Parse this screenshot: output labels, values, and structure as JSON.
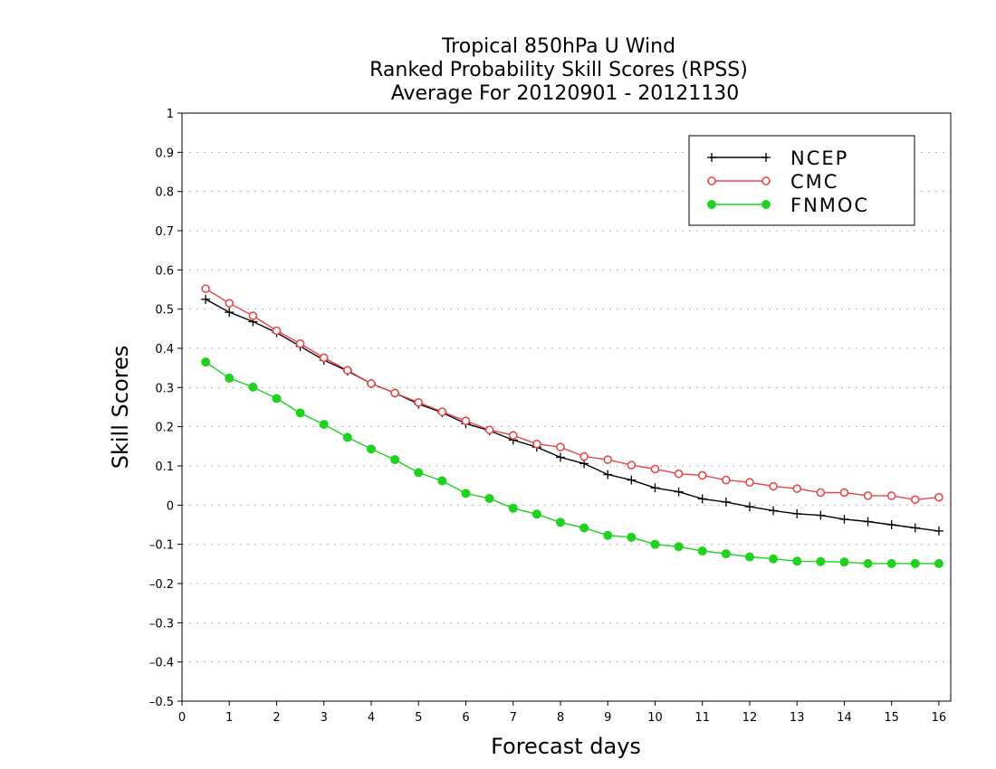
{
  "chart_data": {
    "type": "line",
    "title": [
      "Tropical 850hPa U Wind",
      "Ranked Probability Skill Scores (RPSS)",
      "Average For 20120901 - 20121130"
    ],
    "xlabel": "Forecast days",
    "ylabel": "Skill Scores",
    "xlim": [
      0,
      16.25
    ],
    "ylim": [
      -0.5,
      1
    ],
    "x_ticks": [
      0,
      1,
      2,
      3,
      4,
      5,
      6,
      7,
      8,
      9,
      10,
      11,
      12,
      13,
      14,
      15,
      16
    ],
    "x_tick_labels": [
      "0",
      "1",
      "2",
      "3",
      "4",
      "5",
      "6",
      "7",
      "8",
      "9",
      "10",
      "11",
      "12",
      "13",
      "14",
      "15",
      "16"
    ],
    "y_ticks": [
      -0.5,
      -0.4,
      -0.3,
      -0.2,
      -0.1,
      0,
      0.1,
      0.2,
      0.3,
      0.4,
      0.5,
      0.6,
      0.7,
      0.8,
      0.9,
      1
    ],
    "y_tick_labels": [
      "–0.5",
      "–0.4",
      "–0.3",
      "–0.2",
      "–0.1",
      "0",
      "0.1",
      "0.2",
      "0.3",
      "0.4",
      "0.5",
      "0.6",
      "0.7",
      "0.8",
      "0.9",
      "1"
    ],
    "grid": "horizontal dotted",
    "legend_position": "top-right",
    "x": [
      0.5,
      1,
      1.5,
      2,
      2.5,
      3,
      3.5,
      4,
      4.5,
      5,
      5.5,
      6,
      6.5,
      7,
      7.5,
      8,
      8.5,
      9,
      9.5,
      10,
      10.5,
      11,
      11.5,
      12,
      12.5,
      13,
      13.5,
      14,
      14.5,
      15,
      15.5,
      16
    ],
    "series": [
      {
        "name": "NCEP",
        "color": "#000000",
        "marker": "plus",
        "values": [
          0.525,
          0.492,
          0.468,
          0.44,
          0.405,
          0.37,
          0.342,
          0.31,
          0.286,
          0.258,
          0.236,
          0.208,
          0.19,
          0.166,
          0.148,
          0.122,
          0.106,
          0.078,
          0.064,
          0.044,
          0.034,
          0.016,
          0.008,
          -0.004,
          -0.014,
          -0.022,
          -0.026,
          -0.036,
          -0.042,
          -0.05,
          -0.058,
          -0.066
        ]
      },
      {
        "name": "CMC",
        "color": "#e8474a",
        "marker": "open-circle",
        "values": [
          0.552,
          0.515,
          0.483,
          0.445,
          0.412,
          0.376,
          0.344,
          0.31,
          0.286,
          0.262,
          0.238,
          0.215,
          0.192,
          0.178,
          0.156,
          0.148,
          0.124,
          0.116,
          0.102,
          0.092,
          0.08,
          0.076,
          0.064,
          0.058,
          0.048,
          0.042,
          0.032,
          0.032,
          0.024,
          0.024,
          0.014,
          0.02
        ]
      },
      {
        "name": "FNMOC",
        "color": "#1ed21e",
        "marker": "filled-circle",
        "values": [
          0.365,
          0.324,
          0.301,
          0.272,
          0.235,
          0.206,
          0.173,
          0.143,
          0.116,
          0.083,
          0.062,
          0.03,
          0.017,
          -0.008,
          -0.023,
          -0.044,
          -0.058,
          -0.077,
          -0.082,
          -0.1,
          -0.106,
          -0.117,
          -0.124,
          -0.132,
          -0.137,
          -0.143,
          -0.144,
          -0.145,
          -0.149,
          -0.149,
          -0.149,
          -0.149
        ]
      }
    ]
  }
}
